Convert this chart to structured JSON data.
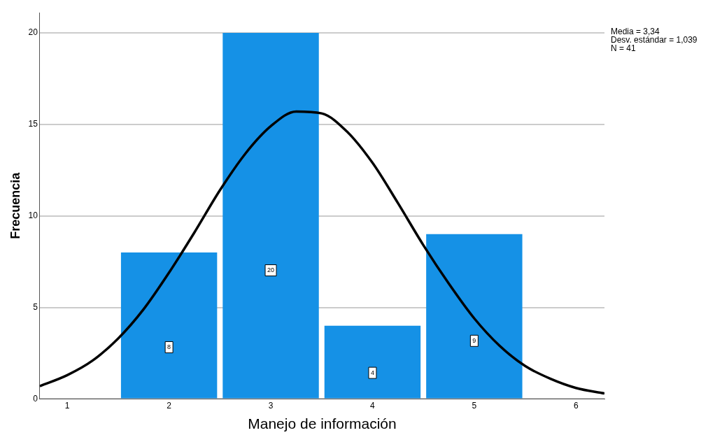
{
  "chart_data": {
    "type": "histogram",
    "xlabel": "Manejo de información",
    "ylabel": "Frecuencia",
    "bins": [
      1.5,
      2.5,
      3.5,
      4.5,
      5.5
    ],
    "values": [
      8,
      20,
      4,
      9
    ],
    "color": "#1591e6",
    "value_labels": [
      "8",
      "20",
      "4",
      "9"
    ],
    "series": [
      {
        "type": "line",
        "color": "#000000",
        "x": [
          0.73,
          1.0,
          1.25,
          1.5,
          1.75,
          2.0,
          2.25,
          2.5,
          2.75,
          3.0,
          3.25,
          3.5,
          3.75,
          4.0,
          4.25,
          4.5,
          4.75,
          5.0,
          5.25,
          5.5,
          5.75,
          6.0,
          6.28
        ],
        "values": [
          0.7,
          1.3,
          2.1,
          3.3,
          4.9,
          6.9,
          9.1,
          11.4,
          13.4,
          14.9,
          15.7,
          15.6,
          14.6,
          12.9,
          10.7,
          8.4,
          6.3,
          4.4,
          2.9,
          1.8,
          1.1,
          0.6,
          0.3
        ]
      }
    ],
    "xlim": [
      0.73,
      6.28
    ],
    "xticks": [
      1,
      2,
      3,
      4,
      5,
      6
    ],
    "ylim": [
      0,
      21.1
    ],
    "yticks": [
      0,
      5,
      10,
      15,
      20
    ],
    "grid": "y",
    "legend": false,
    "annotations": [
      "Media = 3,34",
      "Desv. estándar = 1,039",
      "N = 41"
    ]
  }
}
